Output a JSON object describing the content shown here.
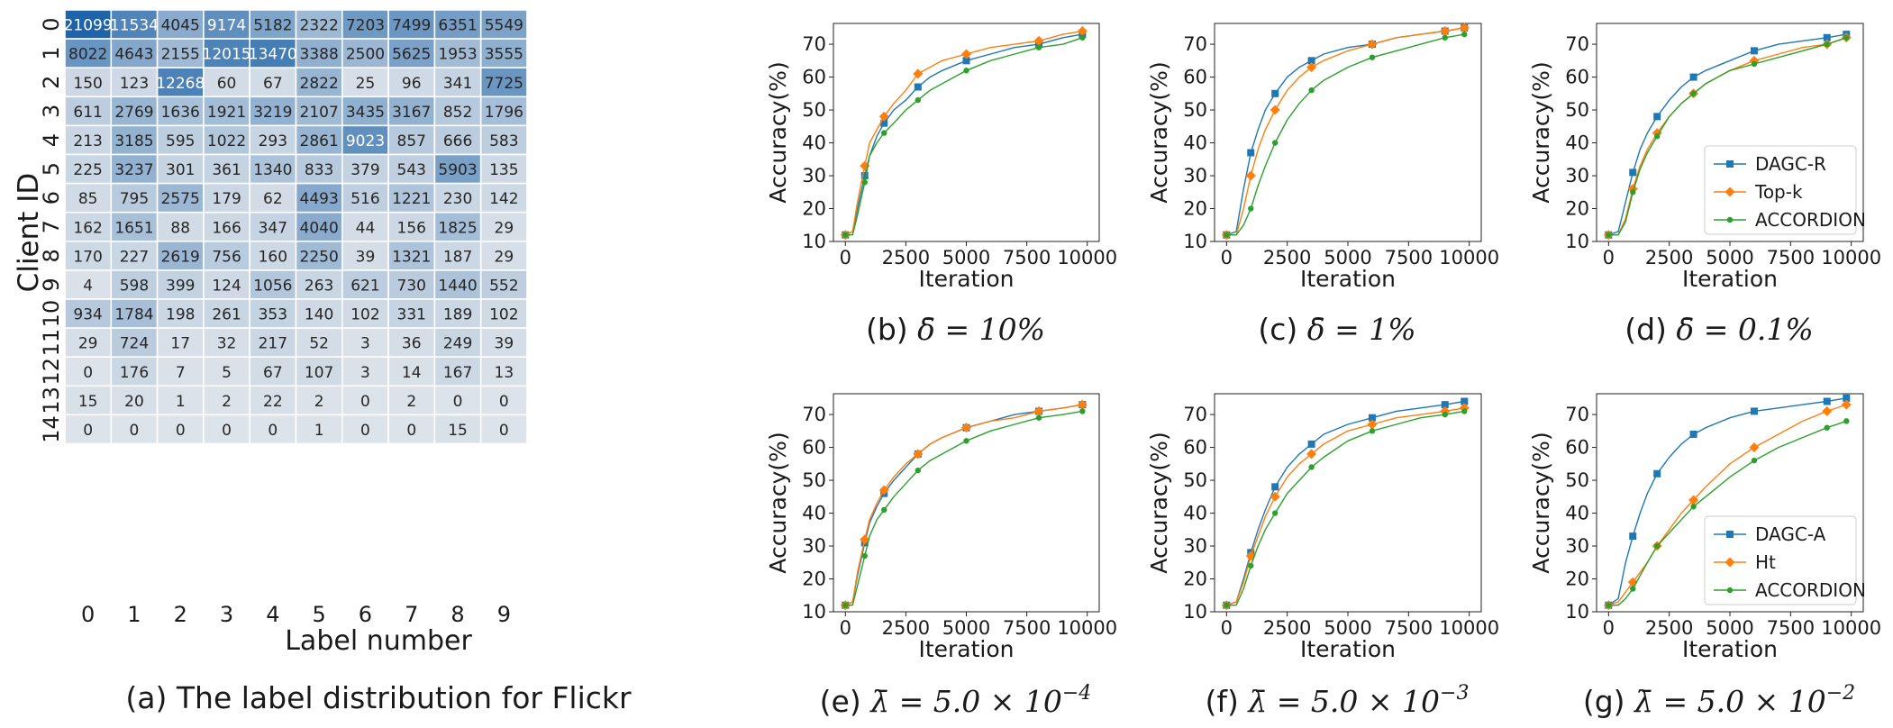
{
  "chart_data": [
    {
      "type": "heatmap",
      "caption": "(a) The label distribution for Flickr",
      "xlabel": "Label number",
      "ylabel": "Client ID",
      "x_categories": [
        "0",
        "1",
        "2",
        "3",
        "4",
        "5",
        "6",
        "7",
        "8",
        "9"
      ],
      "y_categories": [
        "0",
        "1",
        "2",
        "3",
        "4",
        "5",
        "6",
        "7",
        "8",
        "9",
        "10",
        "11",
        "12",
        "13",
        "14"
      ],
      "values": [
        [
          21099,
          11534,
          4045,
          9174,
          5182,
          2322,
          7203,
          7499,
          6351,
          5549
        ],
        [
          8022,
          4643,
          2155,
          12015,
          13470,
          3388,
          2500,
          5625,
          1953,
          3555
        ],
        [
          150,
          123,
          12268,
          60,
          67,
          2822,
          25,
          96,
          341,
          7725
        ],
        [
          611,
          2769,
          1636,
          1921,
          3219,
          2107,
          3435,
          3167,
          852,
          1796
        ],
        [
          213,
          3185,
          595,
          1022,
          293,
          2861,
          9023,
          857,
          666,
          583
        ],
        [
          225,
          3237,
          301,
          361,
          1340,
          833,
          379,
          543,
          5903,
          135
        ],
        [
          85,
          795,
          2575,
          179,
          62,
          4493,
          516,
          1221,
          230,
          142
        ],
        [
          162,
          1651,
          88,
          166,
          347,
          4040,
          44,
          156,
          1825,
          29
        ],
        [
          170,
          227,
          2619,
          756,
          160,
          2250,
          39,
          1321,
          187,
          29
        ],
        [
          4,
          598,
          399,
          124,
          1056,
          263,
          621,
          730,
          1440,
          552
        ],
        [
          934,
          1784,
          198,
          261,
          353,
          140,
          102,
          331,
          189,
          102
        ],
        [
          29,
          724,
          17,
          32,
          217,
          52,
          3,
          36,
          249,
          39
        ],
        [
          0,
          176,
          7,
          5,
          67,
          107,
          3,
          14,
          167,
          13
        ],
        [
          15,
          20,
          1,
          2,
          22,
          2,
          0,
          2,
          0,
          0
        ],
        [
          0,
          0,
          0,
          0,
          0,
          1,
          0,
          0,
          15,
          0
        ]
      ]
    },
    {
      "type": "line",
      "caption_prefix": "(b) ",
      "caption_math": "δ̄ = 10%",
      "xlabel": "Iteration",
      "ylabel": "Accuracy(%)",
      "xlim": [
        0,
        10000
      ],
      "ylim": [
        10,
        75
      ],
      "xticks": [
        0,
        2500,
        5000,
        7500,
        10000
      ],
      "yticks": [
        10,
        20,
        30,
        40,
        50,
        60,
        70
      ],
      "legend": null,
      "series": [
        {
          "name": "DAGC-R",
          "color": "#1f77b4",
          "marker": "square",
          "x": [
            0,
            300,
            500,
            800,
            1000,
            1300,
            1600,
            2000,
            2500,
            3000,
            3500,
            4000,
            5000,
            6000,
            7000,
            8000,
            9000,
            9800
          ],
          "y": [
            12,
            13,
            20,
            30,
            36,
            42,
            46,
            50,
            53,
            57,
            60,
            62,
            65,
            67,
            69,
            70,
            72,
            73
          ]
        },
        {
          "name": "Top-k",
          "color": "#ff7f0e",
          "marker": "diamond",
          "x": [
            0,
            300,
            500,
            800,
            1000,
            1300,
            1600,
            2000,
            2500,
            3000,
            3500,
            4000,
            5000,
            6000,
            7000,
            8000,
            9000,
            9800
          ],
          "y": [
            12,
            13,
            22,
            33,
            40,
            44,
            48,
            52,
            56,
            61,
            63,
            65,
            67,
            69,
            70,
            71,
            73,
            74
          ]
        },
        {
          "name": "ACCORDION",
          "color": "#2ca02c",
          "marker": "circle",
          "x": [
            0,
            300,
            500,
            800,
            1000,
            1300,
            1600,
            2000,
            2500,
            3000,
            3500,
            4000,
            5000,
            6000,
            7000,
            8000,
            9000,
            9800
          ],
          "y": [
            12,
            12,
            18,
            28,
            36,
            40,
            43,
            46,
            50,
            53,
            56,
            58,
            62,
            65,
            67,
            69,
            70,
            72
          ]
        }
      ]
    },
    {
      "type": "line",
      "caption_prefix": "(c) ",
      "caption_math": "δ̄ = 1%",
      "xlabel": "Iteration",
      "ylabel": "Accuracy(%)",
      "xlim": [
        0,
        10000
      ],
      "ylim": [
        10,
        75
      ],
      "xticks": [
        0,
        2500,
        5000,
        7500,
        10000
      ],
      "yticks": [
        10,
        20,
        30,
        40,
        50,
        60,
        70
      ],
      "legend": null,
      "series": [
        {
          "name": "DAGC-R",
          "color": "#1f77b4",
          "marker": "square",
          "x": [
            0,
            400,
            700,
            1000,
            1300,
            1600,
            2000,
            2500,
            3000,
            3500,
            4000,
            5000,
            6000,
            7000,
            8000,
            9000,
            9800
          ],
          "y": [
            12,
            13,
            26,
            37,
            44,
            50,
            55,
            60,
            63,
            65,
            67,
            69,
            70,
            72,
            73,
            74,
            75
          ]
        },
        {
          "name": "Top-k",
          "color": "#ff7f0e",
          "marker": "diamond",
          "x": [
            0,
            400,
            700,
            1000,
            1300,
            1600,
            2000,
            2500,
            3000,
            3500,
            4000,
            5000,
            6000,
            7000,
            8000,
            9000,
            9800
          ],
          "y": [
            12,
            12,
            20,
            30,
            38,
            44,
            50,
            56,
            60,
            63,
            65,
            68,
            70,
            72,
            73,
            74,
            75
          ]
        },
        {
          "name": "ACCORDION",
          "color": "#2ca02c",
          "marker": "circle",
          "x": [
            0,
            400,
            700,
            1000,
            1300,
            1600,
            2000,
            2500,
            3000,
            3500,
            4000,
            5000,
            6000,
            7000,
            8000,
            9000,
            9800
          ],
          "y": [
            12,
            12,
            15,
            20,
            27,
            33,
            40,
            47,
            52,
            56,
            59,
            63,
            66,
            68,
            70,
            72,
            73
          ]
        }
      ]
    },
    {
      "type": "line",
      "caption_prefix": "(d) ",
      "caption_math": "δ̄ = 0.1%",
      "xlabel": "Iteration",
      "ylabel": "Accuracy(%)",
      "xlim": [
        0,
        10000
      ],
      "ylim": [
        10,
        75
      ],
      "xticks": [
        0,
        2500,
        5000,
        7500,
        10000
      ],
      "yticks": [
        10,
        20,
        30,
        40,
        50,
        60,
        70
      ],
      "legend": "lower right",
      "series": [
        {
          "name": "DAGC-R",
          "color": "#1f77b4",
          "marker": "square",
          "x": [
            0,
            400,
            700,
            1000,
            1300,
            1600,
            2000,
            2500,
            3000,
            3500,
            4000,
            5000,
            6000,
            7000,
            8000,
            9000,
            9800
          ],
          "y": [
            12,
            13,
            22,
            31,
            38,
            43,
            48,
            53,
            57,
            60,
            62,
            65,
            68,
            70,
            71,
            72,
            73
          ]
        },
        {
          "name": "Top-k",
          "color": "#ff7f0e",
          "marker": "diamond",
          "x": [
            0,
            400,
            700,
            1000,
            1300,
            1600,
            2000,
            2500,
            3000,
            3500,
            4000,
            5000,
            6000,
            7000,
            8000,
            9000,
            9800
          ],
          "y": [
            12,
            12,
            17,
            26,
            33,
            38,
            43,
            48,
            52,
            55,
            58,
            62,
            65,
            67,
            69,
            70,
            72
          ]
        },
        {
          "name": "ACCORDION",
          "color": "#2ca02c",
          "marker": "circle",
          "x": [
            0,
            400,
            700,
            1000,
            1300,
            1600,
            2000,
            2500,
            3000,
            3500,
            4000,
            5000,
            6000,
            7000,
            8000,
            9000,
            9800
          ],
          "y": [
            12,
            12,
            16,
            25,
            32,
            37,
            42,
            48,
            52,
            55,
            58,
            62,
            64,
            66,
            68,
            70,
            72
          ]
        }
      ]
    },
    {
      "type": "line",
      "caption_prefix": "(e) ",
      "caption_math": "λ̄ = 5.0 × 10",
      "caption_exp": "−4",
      "xlabel": "Iteration",
      "ylabel": "Accuracy(%)",
      "xlim": [
        0,
        10000
      ],
      "ylim": [
        10,
        75
      ],
      "xticks": [
        0,
        2500,
        5000,
        7500,
        10000
      ],
      "yticks": [
        10,
        20,
        30,
        40,
        50,
        60,
        70
      ],
      "legend": null,
      "series": [
        {
          "name": "DAGC-R",
          "color": "#1f77b4",
          "marker": "square",
          "x": [
            0,
            300,
            500,
            800,
            1000,
            1300,
            1600,
            2000,
            2500,
            3000,
            3500,
            4000,
            5000,
            6000,
            7000,
            8000,
            9000,
            9800
          ],
          "y": [
            12,
            13,
            21,
            31,
            37,
            42,
            46,
            50,
            54,
            58,
            61,
            63,
            66,
            68,
            70,
            71,
            72,
            73
          ]
        },
        {
          "name": "Top-k",
          "color": "#ff7f0e",
          "marker": "diamond",
          "x": [
            0,
            300,
            500,
            800,
            1000,
            1300,
            1600,
            2000,
            2500,
            3000,
            3500,
            4000,
            5000,
            6000,
            7000,
            8000,
            9000,
            9800
          ],
          "y": [
            12,
            13,
            22,
            32,
            38,
            43,
            47,
            51,
            55,
            58,
            61,
            63,
            66,
            68,
            69,
            71,
            72,
            73
          ]
        },
        {
          "name": "ACCORDION",
          "color": "#2ca02c",
          "marker": "circle",
          "x": [
            0,
            300,
            500,
            800,
            1000,
            1300,
            1600,
            2000,
            2500,
            3000,
            3500,
            4000,
            5000,
            6000,
            7000,
            8000,
            9000,
            9800
          ],
          "y": [
            12,
            12,
            18,
            27,
            33,
            38,
            41,
            45,
            49,
            53,
            56,
            58,
            62,
            65,
            67,
            69,
            70,
            71
          ]
        }
      ]
    },
    {
      "type": "line",
      "caption_prefix": "(f) ",
      "caption_math": "λ̄ = 5.0 × 10",
      "caption_exp": "−3",
      "xlabel": "Iteration",
      "ylabel": "Accuracy(%)",
      "xlim": [
        0,
        10000
      ],
      "ylim": [
        10,
        75
      ],
      "xticks": [
        0,
        2500,
        5000,
        7500,
        10000
      ],
      "yticks": [
        10,
        20,
        30,
        40,
        50,
        60,
        70
      ],
      "legend": null,
      "series": [
        {
          "name": "DAGC-R",
          "color": "#1f77b4",
          "marker": "square",
          "x": [
            0,
            400,
            700,
            1000,
            1300,
            1600,
            2000,
            2500,
            3000,
            3500,
            4000,
            5000,
            6000,
            7000,
            8000,
            9000,
            9800
          ],
          "y": [
            12,
            13,
            20,
            28,
            35,
            41,
            48,
            54,
            58,
            61,
            64,
            67,
            69,
            71,
            72,
            73,
            74
          ]
        },
        {
          "name": "Top-k",
          "color": "#ff7f0e",
          "marker": "diamond",
          "x": [
            0,
            400,
            700,
            1000,
            1300,
            1600,
            2000,
            2500,
            3000,
            3500,
            4000,
            5000,
            6000,
            7000,
            8000,
            9000,
            9800
          ],
          "y": [
            12,
            13,
            19,
            27,
            33,
            39,
            45,
            51,
            55,
            58,
            61,
            65,
            67,
            69,
            70,
            71,
            72
          ]
        },
        {
          "name": "ACCORDION",
          "color": "#2ca02c",
          "marker": "circle",
          "x": [
            0,
            400,
            700,
            1000,
            1300,
            1600,
            2000,
            2500,
            3000,
            3500,
            4000,
            5000,
            6000,
            7000,
            8000,
            9000,
            9800
          ],
          "y": [
            12,
            12,
            17,
            24,
            30,
            35,
            40,
            46,
            50,
            54,
            57,
            62,
            65,
            67,
            69,
            70,
            71
          ]
        }
      ]
    },
    {
      "type": "line",
      "caption_prefix": "(g) ",
      "caption_math": "λ̄ = 5.0 × 10",
      "caption_exp": "−2",
      "xlabel": "Iteration",
      "ylabel": "Accuracy(%)",
      "xlim": [
        0,
        10000
      ],
      "ylim": [
        10,
        75
      ],
      "xticks": [
        0,
        2500,
        5000,
        7500,
        10000
      ],
      "yticks": [
        10,
        20,
        30,
        40,
        50,
        60,
        70
      ],
      "legend": "lower right",
      "series": [
        {
          "name": "DAGC-A",
          "color": "#1f77b4",
          "marker": "square",
          "x": [
            0,
            400,
            700,
            1000,
            1300,
            1600,
            2000,
            2500,
            3000,
            3500,
            4000,
            5000,
            6000,
            7000,
            8000,
            9000,
            9800
          ],
          "y": [
            12,
            14,
            25,
            33,
            40,
            46,
            52,
            57,
            61,
            64,
            66,
            69,
            71,
            72,
            73,
            74,
            75
          ]
        },
        {
          "name": "Ht",
          "color": "#ff7f0e",
          "marker": "diamond",
          "x": [
            0,
            400,
            700,
            1000,
            1300,
            1600,
            2000,
            2500,
            3000,
            3500,
            4000,
            5000,
            6000,
            7000,
            8000,
            9000,
            9800
          ],
          "y": [
            12,
            13,
            16,
            19,
            22,
            25,
            30,
            35,
            40,
            44,
            48,
            55,
            60,
            64,
            68,
            71,
            73
          ]
        },
        {
          "name": "ACCORDION",
          "color": "#2ca02c",
          "marker": "circle",
          "x": [
            0,
            400,
            700,
            1000,
            1300,
            1600,
            2000,
            2500,
            3000,
            3500,
            4000,
            5000,
            6000,
            7000,
            8000,
            9000,
            9800
          ],
          "y": [
            12,
            12,
            14,
            17,
            21,
            25,
            30,
            34,
            38,
            42,
            45,
            51,
            56,
            60,
            63,
            66,
            68
          ]
        }
      ]
    }
  ]
}
